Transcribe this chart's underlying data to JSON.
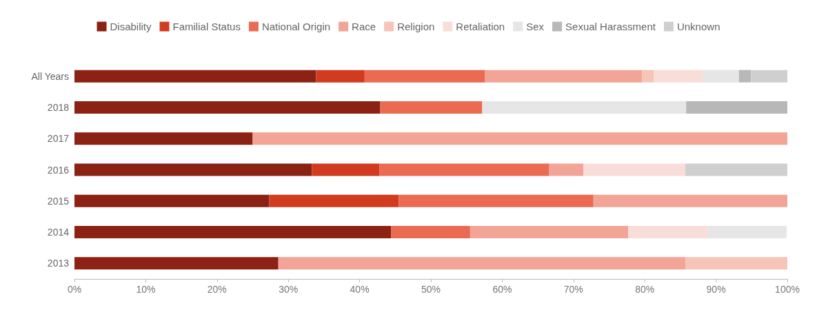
{
  "chart_data": {
    "type": "bar",
    "orientation": "horizontal",
    "stacked": true,
    "legend": "top",
    "grid": false,
    "categories": [
      "All Years",
      "2018",
      "2017",
      "2016",
      "2015",
      "2014",
      "2013"
    ],
    "xlim": [
      0,
      100
    ],
    "xticks": [
      {
        "value": 0,
        "label": "0%"
      },
      {
        "value": 10,
        "label": "10%"
      },
      {
        "value": 20,
        "label": "20%"
      },
      {
        "value": 30,
        "label": "30%"
      },
      {
        "value": 40,
        "label": "40%"
      },
      {
        "value": 50,
        "label": "50%"
      },
      {
        "value": 60,
        "label": "60%"
      },
      {
        "value": 70,
        "label": "70%"
      },
      {
        "value": 80,
        "label": "80%"
      },
      {
        "value": 90,
        "label": "90%"
      },
      {
        "value": 100,
        "label": "100%"
      }
    ],
    "series": [
      {
        "name": "Disability",
        "color": "#8b2214",
        "values": [
          33.9,
          42.9,
          25,
          33.3,
          27.3,
          44.4,
          28.6
        ]
      },
      {
        "name": "Familial Status",
        "color": "#d23b1f",
        "values": [
          6.8,
          null,
          null,
          9.5,
          18.2,
          null,
          null
        ]
      },
      {
        "name": "National Origin",
        "color": "#ea6a52",
        "values": [
          16.9,
          14.3,
          null,
          23.8,
          27.3,
          11.1,
          null
        ]
      },
      {
        "name": "Race",
        "color": "#f2a596",
        "values": [
          22.0,
          null,
          75,
          4.8,
          27.3,
          22.2,
          57.1
        ]
      },
      {
        "name": "Religion",
        "color": "#f6c4b8",
        "values": [
          1.7,
          null,
          null,
          null,
          null,
          null,
          14.3
        ]
      },
      {
        "name": "Retaliation",
        "color": "#f9ddd8",
        "values": [
          6.8,
          null,
          null,
          14.3,
          null,
          11.1,
          null
        ]
      },
      {
        "name": "Sex",
        "color": "#e6e6e6",
        "values": [
          5.1,
          28.6,
          null,
          null,
          null,
          11.1,
          null
        ]
      },
      {
        "name": "Sexual Harassment",
        "color": "#b8b8b8",
        "values": [
          1.7,
          14.3,
          null,
          null,
          null,
          null,
          null
        ]
      },
      {
        "name": "Unknown",
        "color": "#cfcfcf",
        "values": [
          5.1,
          null,
          null,
          14.3,
          null,
          null,
          null
        ]
      }
    ]
  }
}
